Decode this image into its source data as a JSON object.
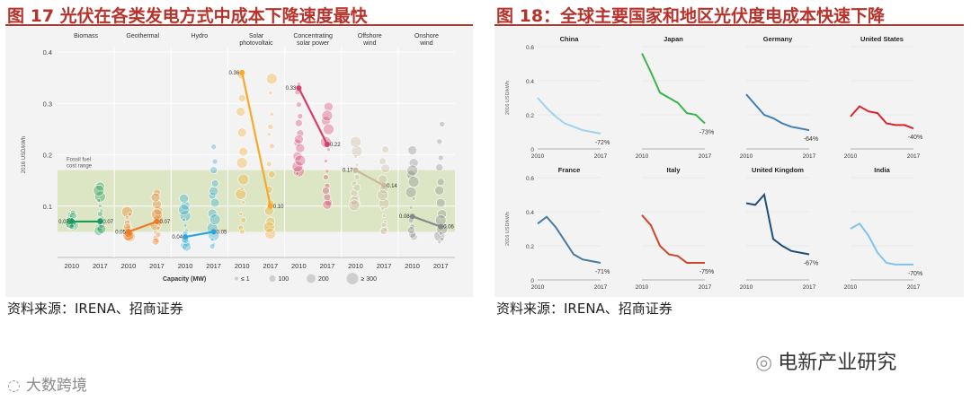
{
  "fig17": {
    "title": "图 17  光伏在各类发电方式中成本下降速度最快",
    "source": "资料来源：IRENA、招商证券"
  },
  "fig18": {
    "title": "图 18：全球主要国家和地区光伏度电成本快速下降",
    "source": "资料来源：IRENA、招商证券"
  },
  "watermarks": {
    "left": "大数跨境",
    "right": "电新产业研究"
  },
  "chart_data": [
    {
      "type": "scatter",
      "title": "",
      "ylabel": "2016 USD/kWh",
      "ylim": [
        0,
        0.4
      ],
      "yticks": [
        "0",
        "0.1",
        "0.2",
        "0.3",
        "0.4"
      ],
      "band_label": "Fossil fuel cost range",
      "band": [
        0.05,
        0.17
      ],
      "colors": {
        "Biomass": "#1a9a5a",
        "Geothermal": "#ee7a22",
        "Hydro": "#2aa6d8",
        "Solar photovoltaic": "#f7a928",
        "Concentrating solar power": "#d83d6c",
        "Offshore wind": "#c9b89a",
        "Onshore wind": "#888888"
      },
      "categories": [
        {
          "name": "Biomass",
          "x": [
            "2010",
            "2017"
          ],
          "values": [
            0.07,
            0.07
          ]
        },
        {
          "name": "Geothermal",
          "x": [
            "2010",
            "2017"
          ],
          "values": [
            0.05,
            0.07
          ]
        },
        {
          "name": "Hydro",
          "x": [
            "2010",
            "2017"
          ],
          "values": [
            0.04,
            0.05
          ]
        },
        {
          "name": "Solar photovoltaic",
          "x": [
            "2010",
            "2017"
          ],
          "values": [
            0.36,
            0.1
          ]
        },
        {
          "name": "Concentrating solar power",
          "x": [
            "2010",
            "2017"
          ],
          "values": [
            0.33,
            0.22
          ]
        },
        {
          "name": "Offshore wind",
          "x": [
            "2010",
            "2017"
          ],
          "values": [
            0.17,
            0.14
          ]
        },
        {
          "name": "Onshore wind",
          "x": [
            "2010",
            "2017"
          ],
          "values": [
            0.08,
            0.06
          ]
        }
      ],
      "value_labels": [
        [
          "0.07",
          "0.07"
        ],
        [
          "0.05",
          "0.07"
        ],
        [
          "0.04",
          "0.05"
        ],
        [
          "0.36",
          "0.10"
        ],
        [
          "0.33",
          "0.22"
        ],
        [
          "0.17",
          "0.14"
        ],
        [
          "0.08",
          "0.06"
        ]
      ],
      "legend": {
        "title": "Capacity (MW)",
        "items": [
          "≤ 1",
          "100",
          "200",
          "≥ 300"
        ]
      }
    },
    {
      "type": "line",
      "title": "",
      "ylabel": "2016 USD/kWh",
      "ylim": [
        0,
        0.6
      ],
      "yticks": [
        "0",
        "0.2",
        "0.4",
        "0.6"
      ],
      "x": [
        2010,
        2011,
        2012,
        2013,
        2014,
        2015,
        2016,
        2017
      ],
      "series": [
        {
          "name": "China",
          "color": "#9fd3ee",
          "values": [
            0.3,
            0.24,
            0.19,
            0.15,
            0.13,
            0.11,
            0.1,
            0.09
          ],
          "change": "-72%"
        },
        {
          "name": "Japan",
          "color": "#3bb44a",
          "values": [
            0.56,
            0.45,
            0.33,
            0.3,
            0.27,
            0.21,
            0.2,
            0.15
          ],
          "change": "-73%"
        },
        {
          "name": "Germany",
          "color": "#3d7fb8",
          "values": [
            0.32,
            0.26,
            0.2,
            0.18,
            0.15,
            0.13,
            0.12,
            0.11
          ],
          "change": "-64%"
        },
        {
          "name": "United States",
          "color": "#d9242c",
          "values": [
            0.19,
            0.25,
            0.22,
            0.21,
            0.15,
            0.14,
            0.14,
            0.12
          ],
          "change": "-40%"
        },
        {
          "name": "France",
          "color": "#4a7a9e",
          "values": [
            0.33,
            0.37,
            0.31,
            0.23,
            0.15,
            0.12,
            0.11,
            0.1
          ],
          "change": "-71%"
        },
        {
          "name": "Italy",
          "color": "#d0462a",
          "values": [
            0.38,
            0.32,
            0.2,
            0.15,
            0.14,
            0.1,
            0.1,
            0.1
          ],
          "change": "-75%"
        },
        {
          "name": "United Kingdom",
          "color": "#1f4e79",
          "values": [
            0.45,
            0.44,
            0.5,
            0.24,
            0.2,
            0.17,
            0.16,
            0.15
          ],
          "change": "-67%"
        },
        {
          "name": "India",
          "color": "#7fc4ea",
          "values": [
            0.3,
            0.33,
            0.26,
            0.16,
            0.1,
            0.09,
            0.09,
            0.09
          ],
          "change": "-70%"
        }
      ]
    }
  ]
}
